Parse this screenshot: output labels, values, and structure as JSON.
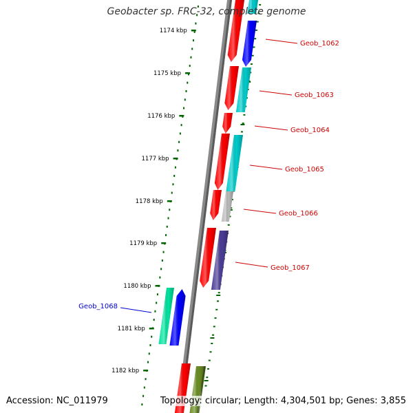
{
  "title": "Geobacter sp. FRC-32, complete genome",
  "accession_text": "Accession: NC_011979",
  "summary_text": "Topology: circular; Length: 4,304,501 bp; Genes: 3,855",
  "scale_ticks": [
    "1174 kbp",
    "1175 kbp",
    "1176 kbp",
    "1177 kbp",
    "1178 kbp",
    "1179 kbp",
    "1180 kbp",
    "1181 kbp",
    "1182 kbp"
  ],
  "genes": [
    {
      "label": "Geob_1062",
      "color": "#0000ff",
      "strand": "reverse",
      "label_color": "#cc0000"
    },
    {
      "label": "Geob_1063",
      "color": "#00cccc",
      "strand": "reverse",
      "label_color": "#cc0000"
    },
    {
      "label": "Geob_1064",
      "color": "#ff0000",
      "strand": "reverse",
      "label_color": "#cc0000"
    },
    {
      "label": "Geob_1065",
      "color": "#00cccc",
      "strand": "reverse",
      "label_color": "#cc0000"
    },
    {
      "label": "Geob_1066",
      "color": "#bbbbbb",
      "strand": "reverse",
      "label_color": "#cc0000"
    },
    {
      "label": "Geob_1067",
      "color": "#4b3d96",
      "strand": "reverse",
      "label_color": "#cc0000"
    },
    {
      "label": "Geob_1068",
      "color": "#0000ff",
      "strand": "forward",
      "label_color": "#0000cc"
    }
  ],
  "colors": {
    "backbone": "#7f7f7f",
    "scale_dots": "#006400",
    "cds_red": "#ff0000",
    "cog_green": "#00e5a0",
    "cog_olive": "#6b8e23"
  }
}
